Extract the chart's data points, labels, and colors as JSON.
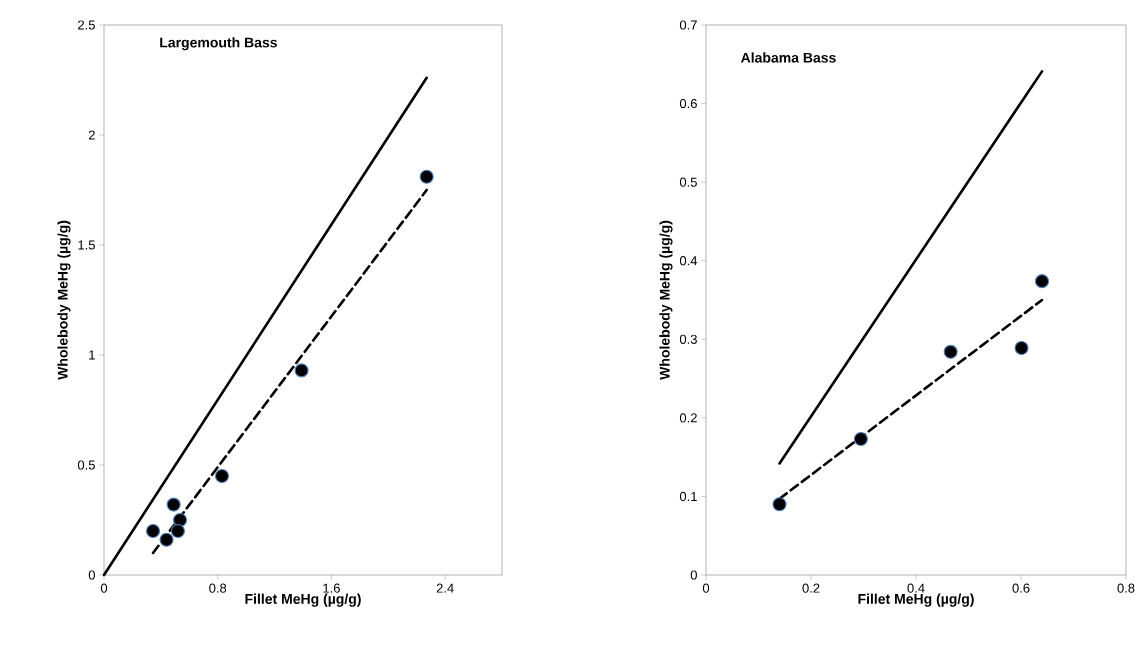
{
  "chart_data": [
    {
      "type": "scatter",
      "title": "Largemouth Bass",
      "xlabel": "Fillet MeHg (µg/g)",
      "ylabel": "Wholebody MeHg (µg/g)",
      "xlim": [
        0,
        2.8
      ],
      "ylim": [
        0,
        2.5
      ],
      "xticks": [
        0,
        0.8,
        1.6,
        2.4
      ],
      "yticks": [
        0,
        0.5,
        1,
        1.5,
        2,
        2.5
      ],
      "grid": false,
      "marker": "circle",
      "series": [
        {
          "type": "line",
          "color": "#000000",
          "line_style": "solid",
          "marker": "none",
          "x": [
            0,
            2.27
          ],
          "values": [
            0,
            2.26
          ]
        },
        {
          "type": "line",
          "color": "#000000",
          "line_style": "dashed",
          "marker": "none",
          "x": [
            0.345,
            2.27
          ],
          "values": [
            0.1,
            1.75
          ]
        },
        {
          "color": "#000000",
          "x": [
            2.27,
            1.39,
            0.83,
            0.49,
            0.535,
            0.345,
            0.44,
            0.52
          ],
          "values": [
            1.81,
            0.93,
            0.45,
            0.32,
            0.25,
            0.2,
            0.16,
            0.2
          ]
        }
      ]
    },
    {
      "type": "scatter",
      "title": "Alabama Bass",
      "xlabel": "Fillet MeHg (µg/g)",
      "ylabel": "Wholebody MeHg (µg/g)",
      "xlim": [
        0,
        0.8
      ],
      "ylim": [
        0,
        0.7
      ],
      "xticks": [
        0,
        0.2,
        0.4,
        0.6,
        0.8
      ],
      "yticks": [
        0,
        0.1,
        0.2,
        0.3,
        0.4,
        0.5,
        0.6,
        0.7
      ],
      "grid": false,
      "marker": "circle",
      "series": [
        {
          "type": "line",
          "color": "#000000",
          "line_style": "solid",
          "marker": "none",
          "x": [
            0.14,
            0.64
          ],
          "values": [
            0.142,
            0.641
          ]
        },
        {
          "type": "line",
          "color": "#000000",
          "line_style": "dashed",
          "marker": "none",
          "x": [
            0.14,
            0.64
          ],
          "values": [
            0.097,
            0.35
          ]
        },
        {
          "color": "#000000",
          "x": [
            0.14,
            0.295,
            0.466,
            0.601,
            0.64
          ],
          "values": [
            0.09,
            0.173,
            0.284,
            0.289,
            0.374
          ]
        }
      ]
    }
  ]
}
